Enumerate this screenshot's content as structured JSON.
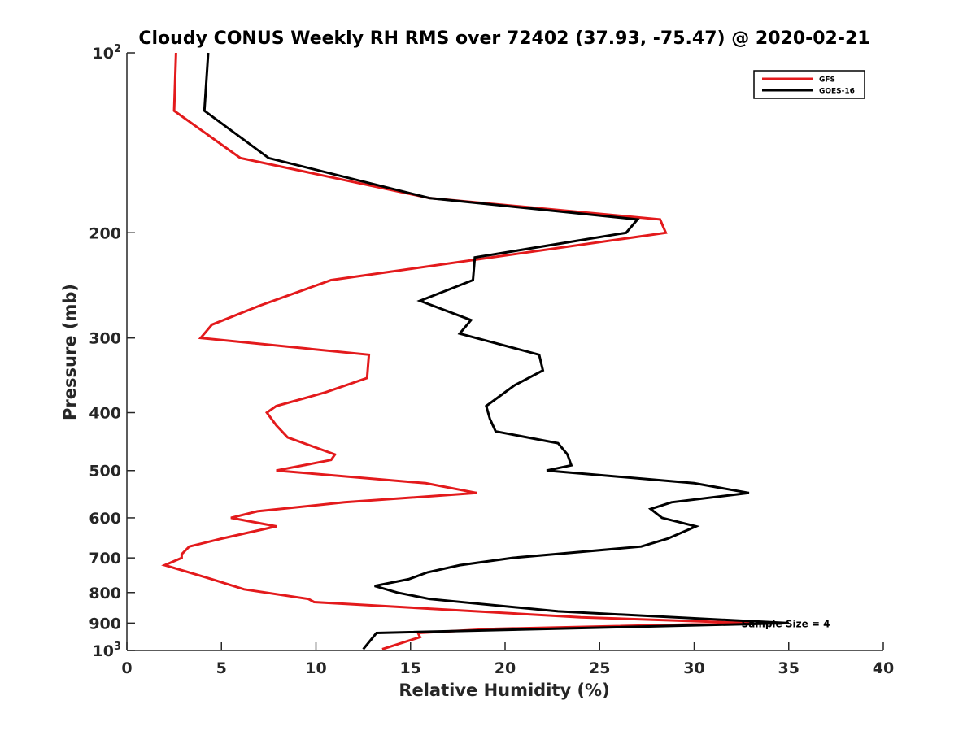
{
  "chart_data": {
    "type": "line",
    "title": "Cloudy CONUS Weekly RH RMS over 72402 (37.93, -75.47) @ 2020-02-21",
    "xlabel": "Relative Humidity (%)",
    "ylabel": "Pressure (mb)",
    "xlim": [
      0,
      40
    ],
    "ylim": [
      100,
      1000
    ],
    "y_scale": "log",
    "y_reversed": true,
    "grid": false,
    "legend_position": "top-right",
    "x_ticks": [
      {
        "value": 0,
        "label": "0"
      },
      {
        "value": 5,
        "label": "5"
      },
      {
        "value": 10,
        "label": "10"
      },
      {
        "value": 15,
        "label": "15"
      },
      {
        "value": 20,
        "label": "20"
      },
      {
        "value": 25,
        "label": "25"
      },
      {
        "value": 30,
        "label": "30"
      },
      {
        "value": 35,
        "label": "35"
      },
      {
        "value": 40,
        "label": "40"
      }
    ],
    "y_ticks": [
      {
        "value": 100,
        "base": "10",
        "exp": "2"
      },
      {
        "value": 200,
        "base": "200",
        "exp": ""
      },
      {
        "value": 300,
        "base": "300",
        "exp": ""
      },
      {
        "value": 400,
        "base": "400",
        "exp": ""
      },
      {
        "value": 500,
        "base": "500",
        "exp": ""
      },
      {
        "value": 600,
        "base": "600",
        "exp": ""
      },
      {
        "value": 700,
        "base": "700",
        "exp": ""
      },
      {
        "value": 800,
        "base": "800",
        "exp": ""
      },
      {
        "value": 900,
        "base": "900",
        "exp": ""
      },
      {
        "value": 1000,
        "base": "10",
        "exp": "3"
      }
    ],
    "annotation": {
      "text": "Sample Size = 4",
      "x": 32.5,
      "y": 900
    },
    "series": [
      {
        "name": "GFS",
        "color": "#e31a1c",
        "points": [
          [
            2.6,
            100
          ],
          [
            2.5,
            125
          ],
          [
            6.0,
            150
          ],
          [
            16.0,
            175
          ],
          [
            28.2,
            190
          ],
          [
            28.5,
            200
          ],
          [
            10.8,
            240
          ],
          [
            7.0,
            265
          ],
          [
            4.5,
            285
          ],
          [
            3.9,
            300
          ],
          [
            12.8,
            320
          ],
          [
            12.7,
            350
          ],
          [
            10.5,
            370
          ],
          [
            7.9,
            390
          ],
          [
            7.4,
            400
          ],
          [
            7.9,
            420
          ],
          [
            8.5,
            440
          ],
          [
            11.0,
            470
          ],
          [
            10.8,
            480
          ],
          [
            7.9,
            500
          ],
          [
            15.8,
            525
          ],
          [
            18.5,
            545
          ],
          [
            11.5,
            565
          ],
          [
            6.9,
            585
          ],
          [
            5.5,
            600
          ],
          [
            7.9,
            620
          ],
          [
            5.0,
            650
          ],
          [
            3.3,
            670
          ],
          [
            2.9,
            690
          ],
          [
            2.9,
            700
          ],
          [
            2.0,
            720
          ],
          [
            4.5,
            760
          ],
          [
            6.2,
            790
          ],
          [
            9.6,
            820
          ],
          [
            9.9,
            830
          ],
          [
            24.0,
            880
          ],
          [
            33.0,
            900
          ],
          [
            19.5,
            920
          ],
          [
            15.4,
            935
          ],
          [
            15.5,
            950
          ],
          [
            13.5,
            995
          ]
        ]
      },
      {
        "name": "GOES-16",
        "color": "#000000",
        "points": [
          [
            4.3,
            100
          ],
          [
            4.1,
            125
          ],
          [
            7.5,
            150
          ],
          [
            16.0,
            175
          ],
          [
            27.0,
            190
          ],
          [
            26.4,
            200
          ],
          [
            18.4,
            220
          ],
          [
            18.3,
            240
          ],
          [
            15.5,
            260
          ],
          [
            18.2,
            280
          ],
          [
            17.6,
            295
          ],
          [
            21.8,
            320
          ],
          [
            22.0,
            340
          ],
          [
            20.5,
            360
          ],
          [
            19.0,
            390
          ],
          [
            19.2,
            410
          ],
          [
            19.5,
            430
          ],
          [
            22.8,
            450
          ],
          [
            23.3,
            470
          ],
          [
            23.5,
            490
          ],
          [
            22.2,
            500
          ],
          [
            30.0,
            525
          ],
          [
            32.9,
            545
          ],
          [
            28.8,
            565
          ],
          [
            27.7,
            580
          ],
          [
            28.3,
            600
          ],
          [
            30.1,
            620
          ],
          [
            28.6,
            650
          ],
          [
            27.2,
            670
          ],
          [
            22.6,
            690
          ],
          [
            20.4,
            700
          ],
          [
            17.6,
            720
          ],
          [
            15.9,
            740
          ],
          [
            14.9,
            760
          ],
          [
            13.1,
            780
          ],
          [
            14.3,
            800
          ],
          [
            16.0,
            820
          ],
          [
            22.8,
            860
          ],
          [
            35.0,
            900
          ],
          [
            13.2,
            935
          ],
          [
            12.5,
            995
          ]
        ]
      }
    ]
  }
}
